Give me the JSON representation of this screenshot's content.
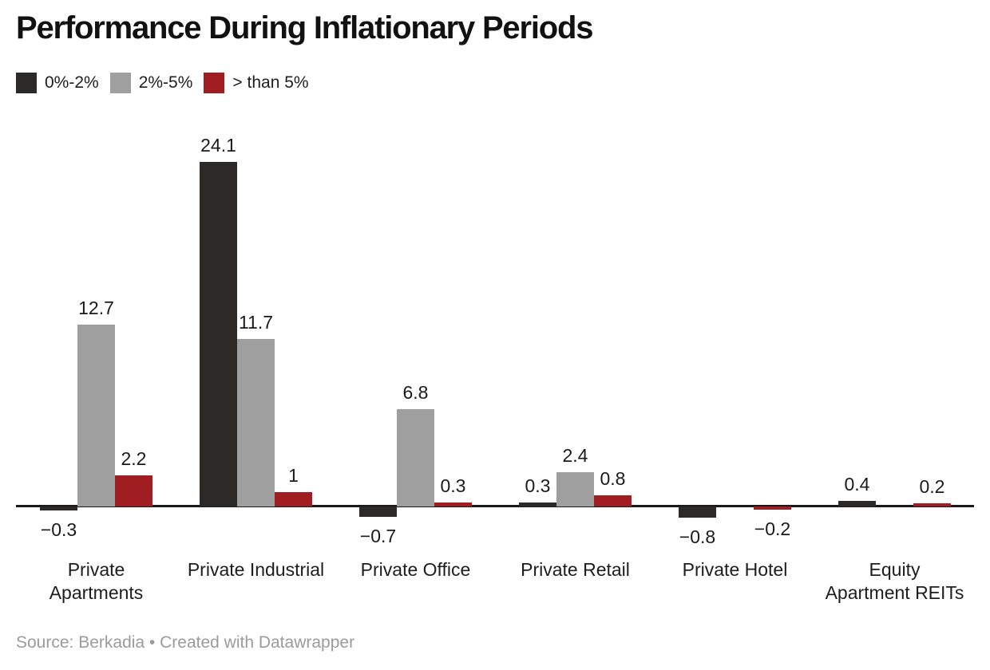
{
  "title": "Performance During Inflationary Periods",
  "legend": {
    "items": [
      {
        "label": "0%-2%",
        "color": "#2b2a28"
      },
      {
        "label": "2%-5%",
        "color": "#9f9f9f"
      },
      {
        "label": "> than 5%",
        "color": "#a01d21"
      }
    ]
  },
  "footer": {
    "source_text": "Source: Berkadia • Created with Datawrapper"
  },
  "chart_data": {
    "type": "bar",
    "title": "Performance During Inflationary Periods",
    "categories": [
      "Private Apartments",
      "Private Industrial",
      "Private Office",
      "Private Retail",
      "Private Hotel",
      "Equity Apartment REITs"
    ],
    "category_lines": [
      [
        "Private",
        "Apartments"
      ],
      [
        "Private Industrial"
      ],
      [
        "Private Office"
      ],
      [
        "Private Retail"
      ],
      [
        "Private Hotel"
      ],
      [
        "Equity",
        "Apartment REITs"
      ]
    ],
    "series": [
      {
        "name": "0%-2%",
        "color": "#2b2a28",
        "values": [
          -0.3,
          24.1,
          -0.7,
          0.3,
          -0.8,
          0.4
        ]
      },
      {
        "name": "2%-5%",
        "color": "#9f9f9f",
        "values": [
          12.7,
          11.7,
          6.8,
          2.4,
          null,
          null
        ]
      },
      {
        "name": "> than 5%",
        "color": "#a01d21",
        "values": [
          2.2,
          1,
          0.3,
          0.8,
          -0.2,
          0.2
        ]
      }
    ],
    "value_labels_shown": true,
    "ylim": [
      -0.9,
      24.5
    ],
    "grid": false,
    "y_axis_ticks_shown": false,
    "legend_position": "top-left",
    "axis_color": "#191919",
    "xlabel": "",
    "ylabel": ""
  }
}
